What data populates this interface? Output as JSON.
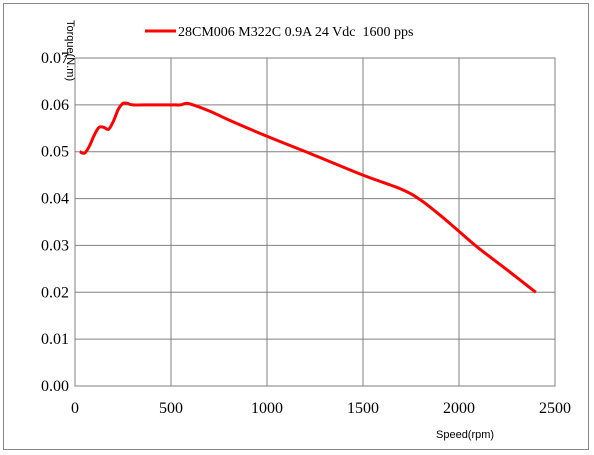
{
  "chart_data": {
    "type": "line",
    "xlabel": "Speed(rpm)",
    "ylabel": "Torque(N.m)",
    "xlim": [
      0,
      2500
    ],
    "ylim": [
      0,
      0.07
    ],
    "x_ticks": [
      "0",
      "500",
      "1000",
      "1500",
      "2000",
      "2500"
    ],
    "y_ticks": [
      "0.00",
      "0.01",
      "0.02",
      "0.03",
      "0.04",
      "0.05",
      "0.06",
      "0.07"
    ],
    "grid": true,
    "legend_position": "top",
    "series": [
      {
        "name": "28CM006 M322C 0.9A 24 Vdc  1600 pps",
        "color": "#ff0000",
        "x": [
          25,
          50,
          75,
          100,
          125,
          150,
          175,
          200,
          225,
          250,
          275,
          300,
          400,
          500,
          550,
          575,
          600,
          700,
          800,
          1000,
          1250,
          1500,
          1700,
          1800,
          1900,
          2000,
          2100,
          2250,
          2400
        ],
        "y": [
          0.05,
          0.0497,
          0.0512,
          0.0535,
          0.0552,
          0.0552,
          0.0548,
          0.0565,
          0.059,
          0.0603,
          0.0603,
          0.06,
          0.06,
          0.06,
          0.06,
          0.0603,
          0.0602,
          0.0587,
          0.0568,
          0.0533,
          0.0492,
          0.045,
          0.042,
          0.0397,
          0.0365,
          0.033,
          0.0295,
          0.0248,
          0.02
        ]
      }
    ]
  }
}
